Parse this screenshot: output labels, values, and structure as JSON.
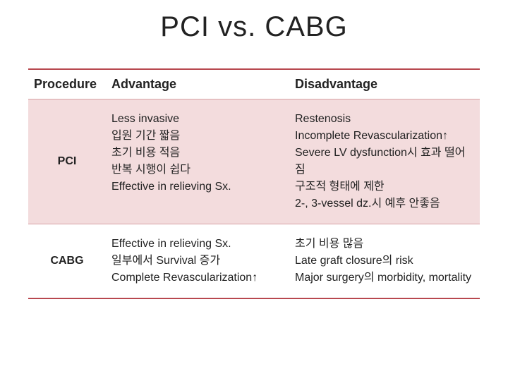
{
  "title": "PCI vs. CABG",
  "colors": {
    "rule_dark": "#b8484f",
    "rule_light": "#d7a1a5",
    "row_highlight_bg": "#f3dcdd",
    "text": "#222222",
    "background": "#ffffff"
  },
  "table": {
    "columns": [
      "Procedure",
      "Advantage",
      "Disadvantage"
    ],
    "rows": [
      {
        "procedure": "PCI",
        "highlight": true,
        "advantage": [
          "Less invasive",
          "입원 기간 짧음",
          "초기 비용 적음",
          "반복 시행이 쉽다",
          "Effective in relieving Sx."
        ],
        "disadvantage": [
          "Restenosis",
          "Incomplete Revascularization↑",
          "Severe LV dysfunction시 효과 떨어짐",
          "구조적 형태에 제한",
          "2-, 3-vessel dz.시 예후 안좋음"
        ]
      },
      {
        "procedure": "CABG",
        "highlight": false,
        "advantage": [
          "Effective in relieving Sx.",
          "일부에서 Survival 증가",
          "Complete Revascularization↑"
        ],
        "disadvantage": [
          "초기 비용 많음",
          "Late graft closure의 risk",
          "Major surgery의 morbidity, mortality"
        ]
      }
    ]
  }
}
